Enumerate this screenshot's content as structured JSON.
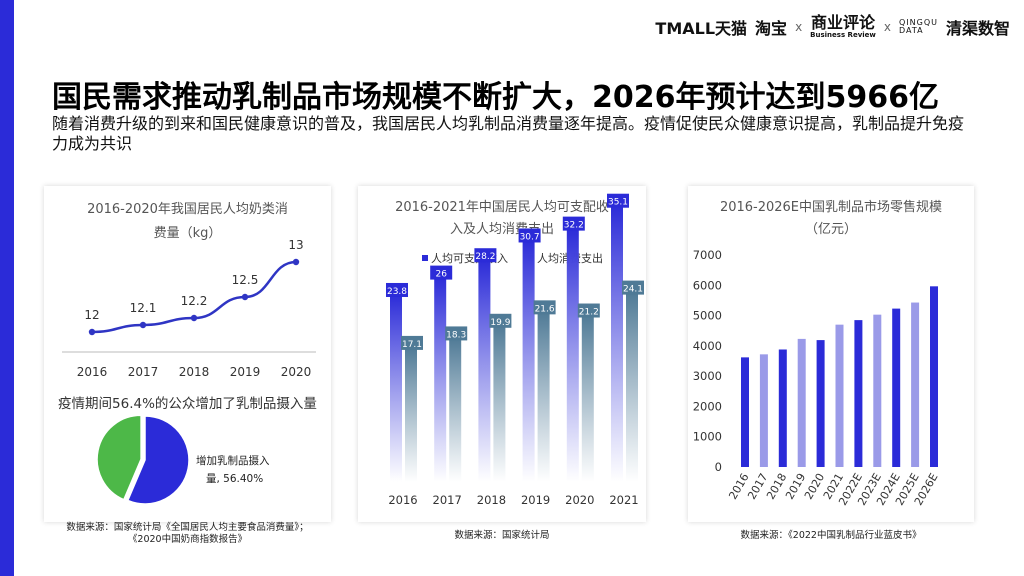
{
  "colors": {
    "accent": "#2b2bd8",
    "light": "#9a9ae8",
    "slate": "#4f7a96",
    "green": "#4db848",
    "line": "#2f35c4"
  },
  "brand": {
    "tmall": "TMALL天猫",
    "taobao": "淘宝",
    "x1": "x",
    "business_review_cn": "商业评论",
    "business_review_en": "Business Review",
    "x2": "x",
    "qingqu_en_1": "QINGQU",
    "qingqu_en_2": "DATA",
    "qingqu_cn": "清渠数智"
  },
  "headline": "国民需求推动乳制品市场规模不断扩大，2026年预计达到5966亿",
  "subline": "随着消费升级的到来和国民健康意识的普及，我国居民人均乳制品消费量逐年提高。疫情促使民众健康意识提高，乳制品提升免疫力成为共识",
  "panel1": {
    "title_line1": "2016-2020年我国居民人均奶类消",
    "title_line2": "费量（kg）",
    "pie_title": "疫情期间56.4%的公众增加了乳制品摄入量",
    "pie_label_line1": "增加乳制品摄入",
    "pie_label_line2": "量, 56.40%",
    "source_line1": "数据来源：国家统计局《全国居民人均主要食品消费量》；",
    "source_line2": "《2020中国奶商指数报告》"
  },
  "panel2": {
    "title_line1": "2016-2021年中国居民人均可支配收",
    "title_line2": "入及人均消费支出",
    "source": "数据来源：国家统计局"
  },
  "panel3": {
    "title_line1": "2016-2026E中国乳制品市场零售规模",
    "title_line2": "（亿元）",
    "source": "数据来源：《2022中国乳制品行业蓝皮书》"
  },
  "chart_data": [
    {
      "type": "line",
      "title": "2016-2020年我国居民人均奶类消费量（kg）",
      "x": [
        "2016",
        "2017",
        "2018",
        "2019",
        "2020"
      ],
      "values": [
        12,
        12.1,
        12.2,
        12.5,
        13
      ],
      "grid": false,
      "legend": "none"
    },
    {
      "type": "pie",
      "title": "疫情期间56.4%的公众增加了乳制品摄入量",
      "slices": [
        {
          "name": "增加乳制品摄入量",
          "value": 56.4,
          "color": "#2b2bd8"
        },
        {
          "value": 43.6,
          "color": "#4db848"
        }
      ],
      "data_labels": [
        "增加乳制品摄入量, 56.40%"
      ]
    },
    {
      "type": "bar",
      "title": "2016-2021年中国居民人均可支配收入及人均消费支出",
      "categories": [
        "2016",
        "2017",
        "2018",
        "2019",
        "2020",
        "2021"
      ],
      "series": [
        {
          "name": "人均可支配收入",
          "values": [
            23.8,
            26,
            28.2,
            30.7,
            32.2,
            35.1
          ],
          "color": "#2b2bd8"
        },
        {
          "name": "人均消费支出",
          "values": [
            17.1,
            18.3,
            19.9,
            21.6,
            21.2,
            24.1
          ],
          "color": "#4f7a96"
        }
      ],
      "legend": "top",
      "grid": false
    },
    {
      "type": "bar",
      "title": "2016-2026E中国乳制品市场零售规模（亿元）",
      "categories": [
        "2016",
        "2017",
        "2018",
        "2019",
        "2020",
        "2021",
        "2022E",
        "2023E",
        "2024E",
        "2025E",
        "2026E"
      ],
      "values": [
        3620,
        3720,
        3880,
        4230,
        4190,
        4700,
        4850,
        5030,
        5230,
        5430,
        5966
      ],
      "colors": [
        "#2b2bd8",
        "#9a9ae8",
        "#2b2bd8",
        "#9a9ae8",
        "#2b2bd8",
        "#9a9ae8",
        "#2b2bd8",
        "#9a9ae8",
        "#2b2bd8",
        "#9a9ae8",
        "#2b2bd8"
      ],
      "yticks": [
        "0",
        "1000",
        "2000",
        "3000",
        "4000",
        "5000",
        "6000",
        "7000"
      ],
      "ylim": [
        0,
        7000
      ],
      "grid": false
    }
  ]
}
